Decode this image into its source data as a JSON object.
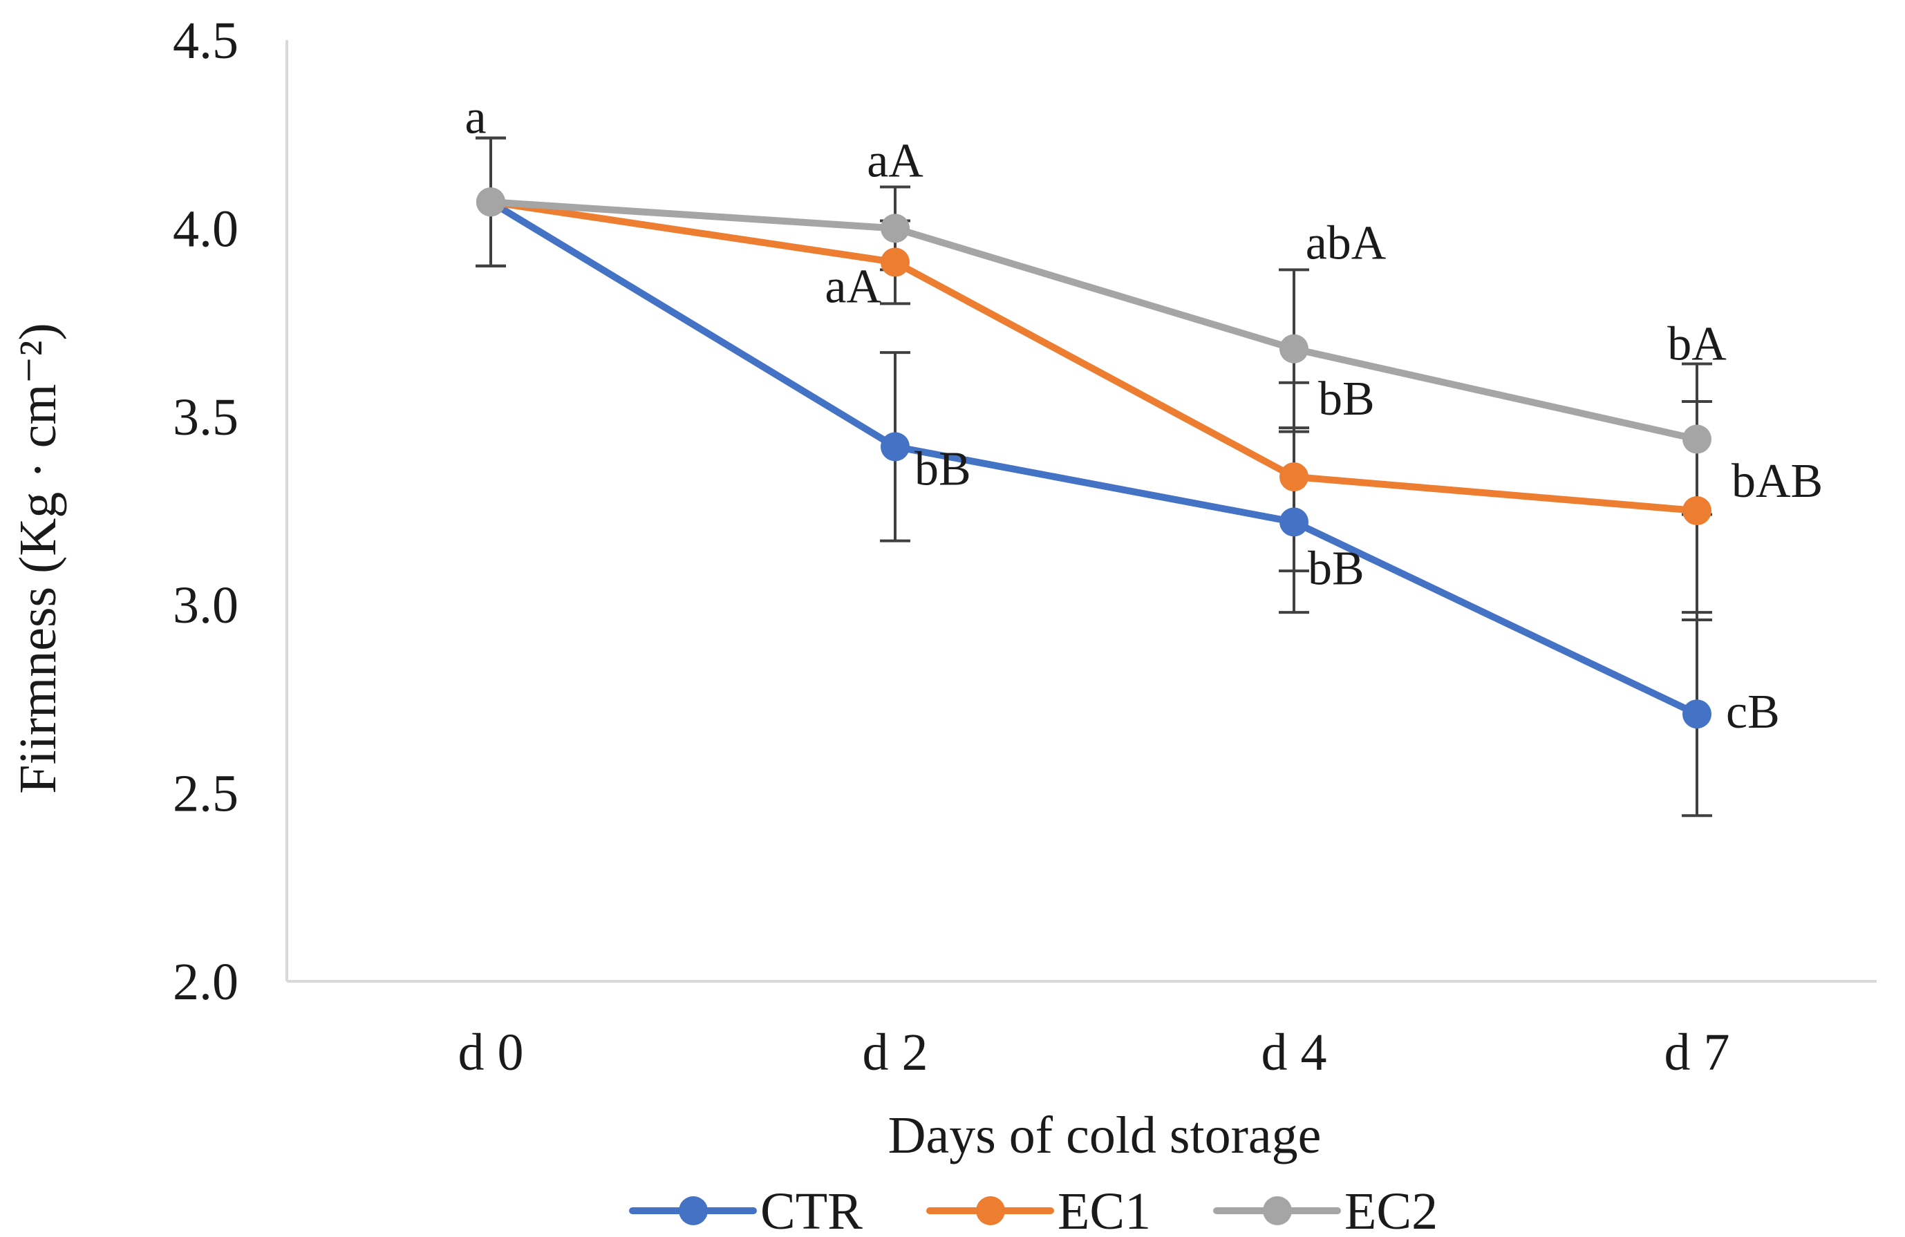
{
  "chart_data": {
    "type": "line",
    "title": "",
    "xlabel": "Days of cold storage",
    "ylabel": "Fiirmness (Kg · cm⁻²)",
    "ylim": [
      2.0,
      4.5
    ],
    "yticks": [
      "2.0",
      "2.5",
      "3.0",
      "3.5",
      "4.0",
      "4.5"
    ],
    "categories": [
      "d 0",
      "d 2",
      "d 4",
      "d 7"
    ],
    "grid": false,
    "legend_position": "bottom",
    "series": [
      {
        "name": "CTR",
        "color": "#4472C4",
        "values": [
          4.07,
          3.42,
          3.22,
          2.71
        ],
        "errors": [
          0.17,
          0.25,
          0.24,
          0.27
        ],
        "labels": [
          "",
          "bB",
          "bB",
          "cB"
        ]
      },
      {
        "name": "EC1",
        "color": "#ED7D31",
        "values": [
          4.07,
          3.91,
          3.34,
          3.25
        ],
        "errors": [
          0.17,
          0.11,
          0.25,
          0.29
        ],
        "labels": [
          "",
          "aA",
          "bB",
          "bAB"
        ]
      },
      {
        "name": "EC2",
        "color": "#A5A5A5",
        "values": [
          4.07,
          4.0,
          3.68,
          3.44
        ],
        "errors": [
          0.17,
          0.11,
          0.21,
          0.2
        ],
        "labels": [
          "a",
          "aA",
          "abA",
          "bA"
        ]
      }
    ],
    "axis_color": "#d9d9d9"
  }
}
